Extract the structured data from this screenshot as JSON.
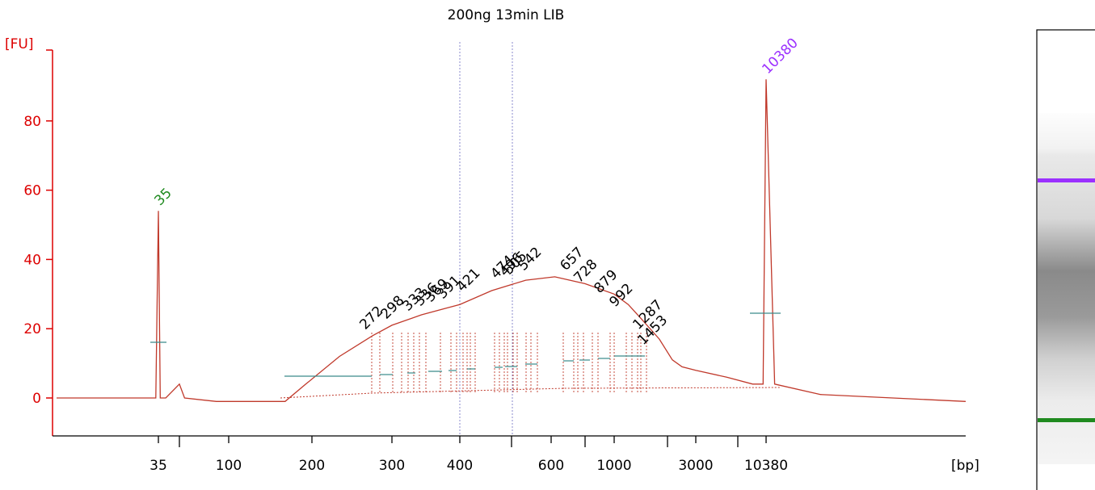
{
  "chart_data": {
    "type": "line",
    "title": "200ng 13min LIB",
    "ylabel": "[FU]",
    "xlabel": "[bp]",
    "ylim": [
      -10,
      100
    ],
    "y_ticks": [
      0,
      20,
      40,
      60,
      80
    ],
    "x_axis_scale": "log (bp)",
    "x_tick_labels": [
      "35",
      "100",
      "200",
      "300",
      "400",
      "600",
      "1000",
      "3000",
      "10380"
    ],
    "colors": {
      "axis": "#dd0000",
      "trace": "#c0392b",
      "lower_marker": "#1f8a1f",
      "upper_marker": "#9b30ff",
      "peak_label": "#000000",
      "baseline": "#3a8a8a",
      "region": "#8888cc"
    },
    "markers": [
      {
        "label": "35",
        "bp": 35,
        "fu": 54,
        "color": "lower"
      },
      {
        "label": "10380",
        "bp": 10380,
        "fu": 92,
        "color": "upper"
      }
    ],
    "peak_labels": [
      "272",
      "298",
      "333",
      "336",
      "369",
      "391",
      "421",
      "474",
      "496",
      "505",
      "542",
      "657",
      "728",
      "879",
      "992",
      "1287",
      "1453"
    ],
    "series": [
      {
        "values": [
          {
            "bp": 20,
            "fu": 0
          },
          {
            "bp": 34.5,
            "fu": 0
          },
          {
            "bp": 35,
            "fu": 54
          },
          {
            "bp": 35.5,
            "fu": 0
          },
          {
            "bp": 37,
            "fu": 0
          },
          {
            "bp": 41,
            "fu": 4
          },
          {
            "bp": 45,
            "fu": 0
          },
          {
            "bp": 80,
            "fu": -1
          },
          {
            "bp": 160,
            "fu": -1
          },
          {
            "bp": 190,
            "fu": 4
          },
          {
            "bp": 230,
            "fu": 12
          },
          {
            "bp": 272,
            "fu": 18
          },
          {
            "bp": 300,
            "fu": 21
          },
          {
            "bp": 340,
            "fu": 24
          },
          {
            "bp": 400,
            "fu": 27
          },
          {
            "bp": 480,
            "fu": 31
          },
          {
            "bp": 560,
            "fu": 34
          },
          {
            "bp": 610,
            "fu": 35
          },
          {
            "bp": 700,
            "fu": 33
          },
          {
            "bp": 800,
            "fu": 30
          },
          {
            "bp": 900,
            "fu": 27
          },
          {
            "bp": 1000,
            "fu": 23
          },
          {
            "bp": 1200,
            "fu": 17
          },
          {
            "bp": 1500,
            "fu": 11
          },
          {
            "bp": 2000,
            "fu": 9
          },
          {
            "bp": 3000,
            "fu": 8
          },
          {
            "bp": 5000,
            "fu": 6
          },
          {
            "bp": 8000,
            "fu": 4
          },
          {
            "bp": 9800,
            "fu": 4
          },
          {
            "bp": 10380,
            "fu": 92
          },
          {
            "bp": 11000,
            "fu": 4
          },
          {
            "bp": 15000,
            "fu": 1
          },
          {
            "bp": 40000,
            "fu": -1
          }
        ]
      }
    ],
    "region_lines_bp": [
      400,
      540
    ]
  }
}
